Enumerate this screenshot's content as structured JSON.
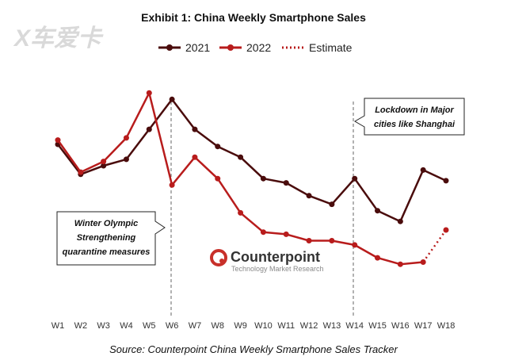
{
  "watermark": {
    "text": "X车爱卡"
  },
  "chart_data": {
    "type": "line",
    "title": "Exhibit 1: China Weekly Smartphone Sales",
    "categories": [
      "W1",
      "W2",
      "W3",
      "W4",
      "W5",
      "W6",
      "W7",
      "W8",
      "W9",
      "W10",
      "W11",
      "W12",
      "W13",
      "W14",
      "W15",
      "W16",
      "W17",
      "W18"
    ],
    "xlabel": "",
    "ylabel": "",
    "ylim": [
      0,
      100
    ],
    "grid": false,
    "legend_position": "top-center",
    "series": [
      {
        "name": "2021",
        "color": "#4a0c0c",
        "style": "solid",
        "values": [
          80,
          66,
          70,
          73,
          87,
          101,
          87,
          79,
          74,
          64,
          62,
          56,
          52,
          64,
          49,
          44,
          68,
          63
        ]
      },
      {
        "name": "2022",
        "color": "#b81c1c",
        "style": "solid",
        "values": [
          82,
          67,
          72,
          83,
          104,
          61,
          74,
          64,
          48,
          39,
          38,
          35,
          35,
          33,
          27,
          24,
          25,
          null
        ]
      },
      {
        "name": "Estimate",
        "color": "#b81c1c",
        "style": "dotted",
        "values": [
          null,
          null,
          null,
          null,
          null,
          null,
          null,
          null,
          null,
          null,
          null,
          null,
          null,
          null,
          null,
          null,
          25,
          40
        ]
      }
    ],
    "reference_lines": [
      {
        "at": "W6",
        "label": "Winter Olympic Strengthening quarantine measures",
        "label_lines": [
          "Winter Olympic",
          "Strengthening",
          "quarantine measures"
        ]
      },
      {
        "at": "W14",
        "label": "Lockdown in Major cities like Shanghai",
        "label_lines": [
          "Lockdown in Major",
          "cities like Shanghai"
        ]
      }
    ],
    "logo": {
      "name": "Counterpoint",
      "tagline": "Technology Market Research"
    },
    "source": "Source: Counterpoint China Weekly Smartphone Sales Tracker"
  }
}
